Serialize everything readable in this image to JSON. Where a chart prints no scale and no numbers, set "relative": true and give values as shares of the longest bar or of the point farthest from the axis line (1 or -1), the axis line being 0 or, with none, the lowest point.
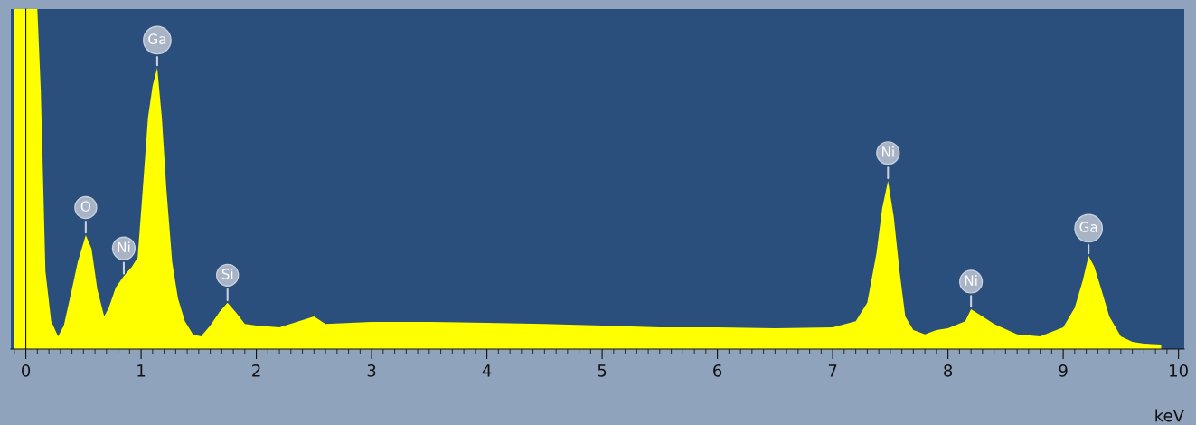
{
  "chart_data": {
    "type": "area",
    "relative": true,
    "xlabel": "keV",
    "xlim": [
      -0.13,
      10.05
    ],
    "xticks": [
      0,
      1,
      2,
      3,
      4,
      5,
      6,
      7,
      8,
      9,
      10
    ],
    "legend": false,
    "series": [
      {
        "color": "#ffff00",
        "x": [
          -0.1,
          0.1,
          0.13,
          0.17,
          0.22,
          0.28,
          0.33,
          0.4,
          0.45,
          0.52,
          0.57,
          0.62,
          0.68,
          0.72,
          0.78,
          0.85,
          0.92,
          0.97,
          1.02,
          1.06,
          1.1,
          1.14,
          1.18,
          1.22,
          1.27,
          1.32,
          1.38,
          1.45,
          1.52,
          1.6,
          1.68,
          1.75,
          1.82,
          1.9,
          2.0,
          2.2,
          2.5,
          2.6,
          3.0,
          3.5,
          4.0,
          4.5,
          5.0,
          5.5,
          6.0,
          6.5,
          7.0,
          7.2,
          7.3,
          7.38,
          7.43,
          7.48,
          7.53,
          7.58,
          7.63,
          7.7,
          7.8,
          7.9,
          8.0,
          8.15,
          8.2,
          8.3,
          8.4,
          8.6,
          8.8,
          9.0,
          9.1,
          9.17,
          9.22,
          9.27,
          9.33,
          9.4,
          9.5,
          9.6,
          9.7,
          9.85
        ],
        "values": [
          1.0,
          1.0,
          0.76,
          0.229,
          0.082,
          0.037,
          0.069,
          0.176,
          0.255,
          0.335,
          0.295,
          0.176,
          0.096,
          0.122,
          0.181,
          0.215,
          0.242,
          0.269,
          0.495,
          0.681,
          0.774,
          0.827,
          0.681,
          0.468,
          0.255,
          0.149,
          0.082,
          0.043,
          0.037,
          0.069,
          0.109,
          0.136,
          0.109,
          0.074,
          0.069,
          0.064,
          0.096,
          0.074,
          0.08,
          0.08,
          0.077,
          0.074,
          0.069,
          0.064,
          0.064,
          0.061,
          0.064,
          0.082,
          0.136,
          0.282,
          0.415,
          0.495,
          0.388,
          0.229,
          0.096,
          0.056,
          0.043,
          0.056,
          0.061,
          0.082,
          0.117,
          0.096,
          0.074,
          0.043,
          0.037,
          0.064,
          0.122,
          0.202,
          0.274,
          0.242,
          0.176,
          0.096,
          0.037,
          0.021,
          0.016,
          0.013
        ]
      }
    ],
    "annotations": [
      {
        "text": "O",
        "x": 0.52,
        "y": 0.335
      },
      {
        "text": "Ni",
        "x": 0.85,
        "y": 0.215
      },
      {
        "text": "Ga",
        "x": 1.14,
        "y": 0.827
      },
      {
        "text": "Si",
        "x": 1.75,
        "y": 0.136
      },
      {
        "text": "Ni",
        "x": 7.48,
        "y": 0.495
      },
      {
        "text": "Ni",
        "x": 8.2,
        "y": 0.117
      },
      {
        "text": "Ga",
        "x": 9.22,
        "y": 0.274
      }
    ]
  }
}
